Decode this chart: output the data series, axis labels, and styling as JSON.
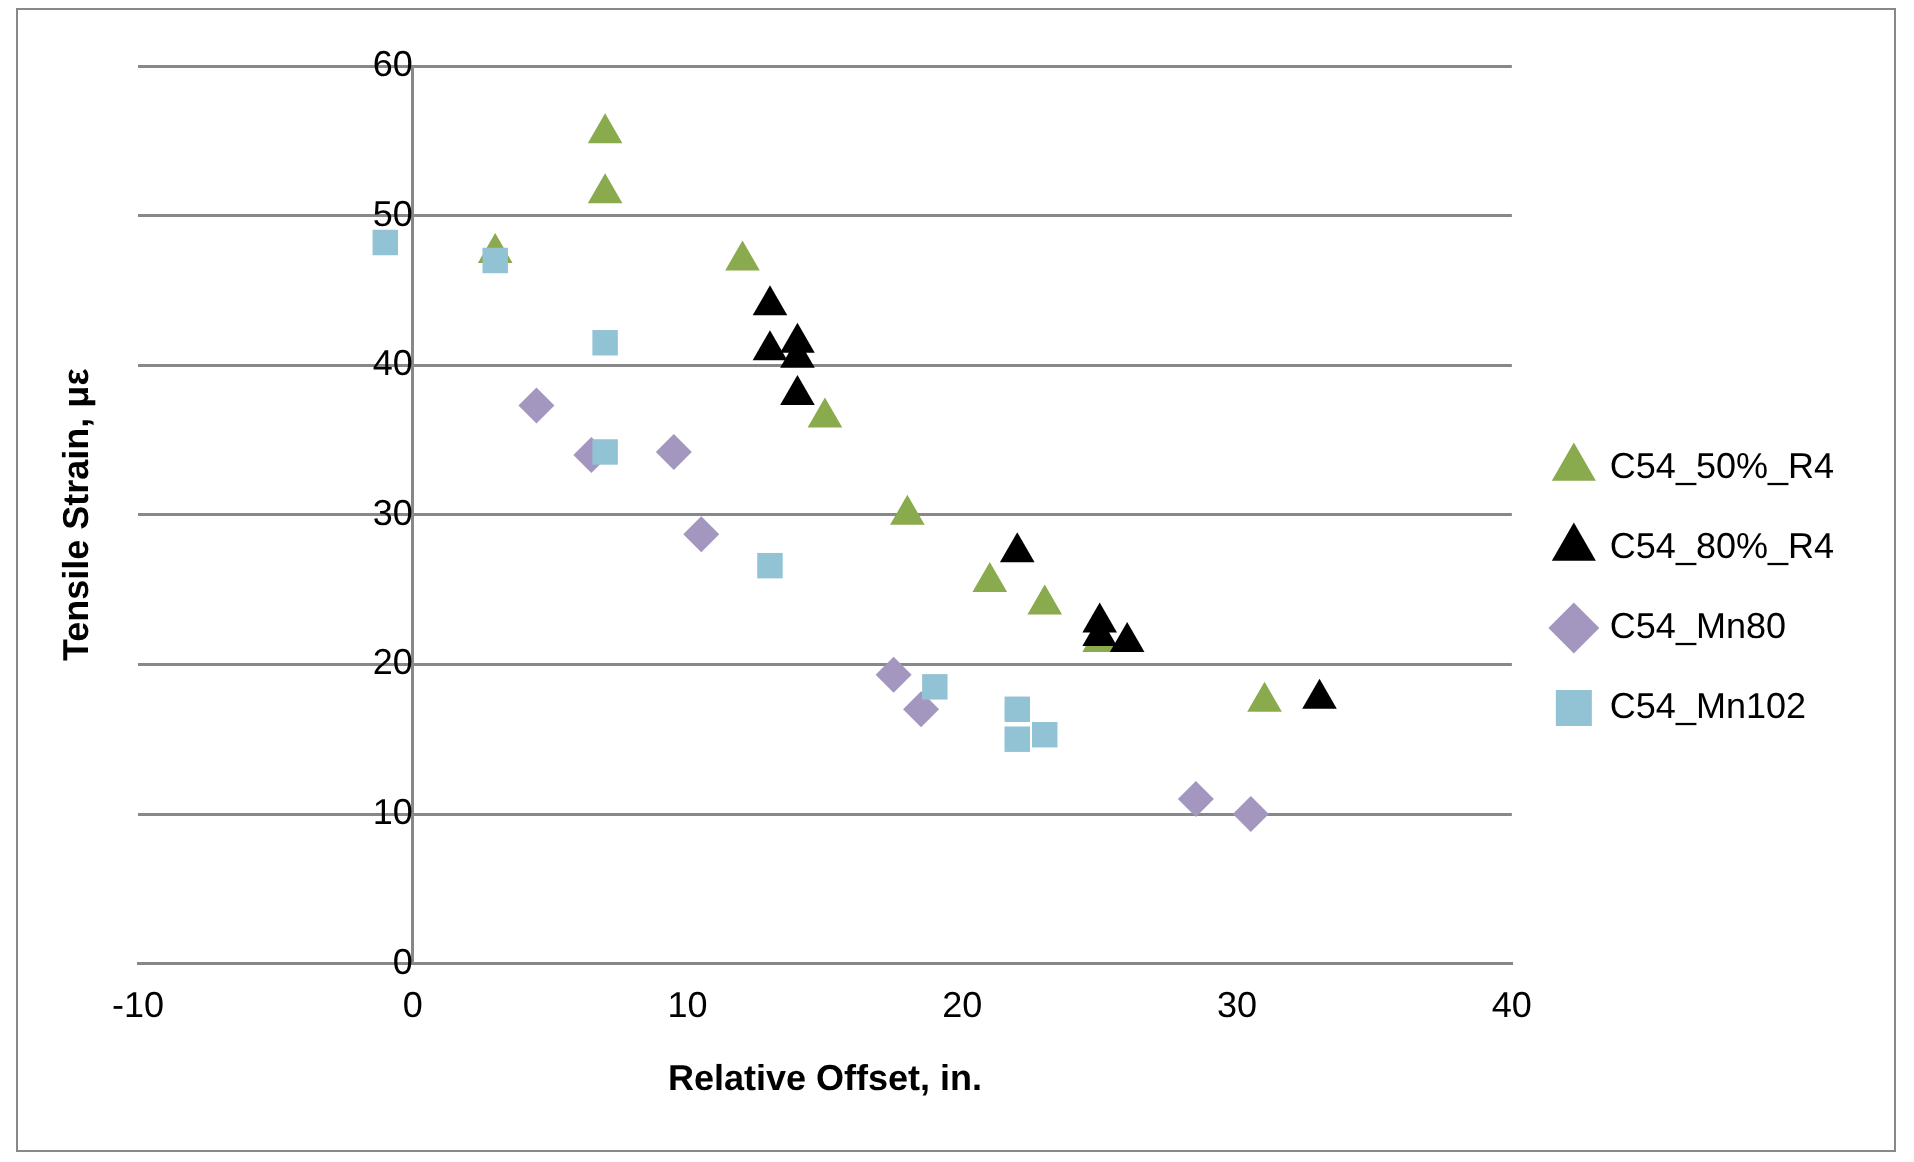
{
  "chart_data": {
    "type": "scatter",
    "xlabel": "Relative Offset, in.",
    "ylabel": "Tensile Strain, με",
    "xlim": [
      -10,
      40
    ],
    "xticks": [
      -10,
      0,
      10,
      20,
      30,
      40
    ],
    "ylim": [
      0,
      60
    ],
    "yticks": [
      0,
      10,
      20,
      30,
      40,
      50,
      60
    ],
    "grid": "y",
    "legend": "right",
    "series": [
      {
        "name": "C54_50%_R4",
        "color": "#8aaa4e",
        "marker": "triangle",
        "x": [
          3,
          7,
          7,
          12,
          15,
          18,
          21,
          23,
          25,
          31
        ],
        "values": [
          47.5,
          55.5,
          51.5,
          47,
          36.5,
          30,
          25.5,
          24,
          21.5,
          17.5
        ]
      },
      {
        "name": "C54_80%_R4",
        "color": "#000000",
        "marker": "triangle",
        "x": [
          13,
          13,
          14,
          14,
          14,
          22,
          25,
          25,
          26,
          33
        ],
        "values": [
          44,
          41,
          41.5,
          40.5,
          38,
          27.5,
          22.8,
          21.9,
          21.5,
          17.7
        ]
      },
      {
        "name": "C54_Mn80",
        "color": "#a397bf",
        "marker": "diamond",
        "x": [
          4.5,
          6.5,
          9.5,
          10.5,
          17.5,
          18.5,
          28.5,
          30.5
        ],
        "values": [
          37.3,
          34,
          34.2,
          28.7,
          19.3,
          17,
          11,
          10
        ]
      },
      {
        "name": "C54_Mn102",
        "color": "#92c3d4",
        "marker": "square",
        "x": [
          -1,
          3,
          7,
          7,
          13,
          19,
          22,
          22,
          23
        ],
        "values": [
          48.2,
          47,
          41.5,
          34.2,
          26.6,
          18.5,
          17,
          15,
          15.3
        ]
      }
    ]
  }
}
